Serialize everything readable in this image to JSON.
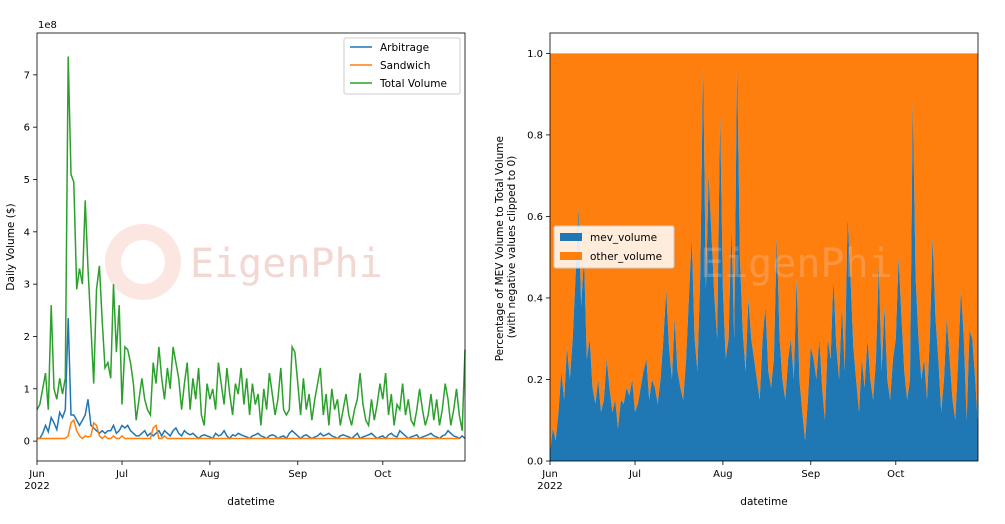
{
  "watermark": "EigenPhi",
  "chart_data": [
    {
      "type": "line",
      "xlabel": "datetime",
      "ylabel": "Daily Volume ($)",
      "y_offset_label": "1e8",
      "x_range": [
        0,
        151
      ],
      "ylim": [
        -0.38,
        7.8
      ],
      "yticks": [
        0,
        1,
        2,
        3,
        4,
        5,
        6,
        7
      ],
      "xtick_positions": [
        0,
        30,
        61,
        92,
        122
      ],
      "xtick_labels": [
        "Jun",
        "Jul",
        "Aug",
        "Sep",
        "Oct"
      ],
      "year_label": "2022",
      "legend_position": "upper right",
      "series": [
        {
          "name": "Arbitrage",
          "color": "#1f77b4",
          "values": [
            0.05,
            0.05,
            0.15,
            0.3,
            0.18,
            0.45,
            0.35,
            0.22,
            0.55,
            0.45,
            0.6,
            2.35,
            0.5,
            0.5,
            0.4,
            0.3,
            0.4,
            0.5,
            0.8,
            0.3,
            0.25,
            0.2,
            0.15,
            0.2,
            0.15,
            0.2,
            0.2,
            0.3,
            0.15,
            0.2,
            0.3,
            0.25,
            0.3,
            0.2,
            0.15,
            0.1,
            0.1,
            0.15,
            0.2,
            0.1,
            0.15,
            0.1,
            0.15,
            0.2,
            0.1,
            0.2,
            0.15,
            0.1,
            0.2,
            0.25,
            0.15,
            0.1,
            0.2,
            0.15,
            0.12,
            0.15,
            0.1,
            0.05,
            0.1,
            0.12,
            0.1,
            0.08,
            0.05,
            0.15,
            0.1,
            0.12,
            0.2,
            0.1,
            0.05,
            0.12,
            0.1,
            0.15,
            0.12,
            0.1,
            0.08,
            0.05,
            0.1,
            0.12,
            0.15,
            0.1,
            0.08,
            0.05,
            0.1,
            0.12,
            0.1,
            0.05,
            0.08,
            0.1,
            0.05,
            0.15,
            0.2,
            0.15,
            0.1,
            0.05,
            0.1,
            0.12,
            0.08,
            0.05,
            0.08,
            0.1,
            0.15,
            0.1,
            0.12,
            0.15,
            0.1,
            0.08,
            0.05,
            0.1,
            0.12,
            0.1,
            0.08,
            0.05,
            0.1,
            0.15,
            0.05,
            0.08,
            0.1,
            0.12,
            0.15,
            0.1,
            0.05,
            0.08,
            0.1,
            0.05,
            0.12,
            0.15,
            0.1,
            0.08,
            0.2,
            0.15,
            0.1,
            0.05,
            0.08,
            0.1,
            0.12,
            0.05,
            0.08,
            0.1,
            0.12,
            0.15,
            0.1,
            0.08,
            0.05,
            0.1,
            0.12,
            0.2,
            0.15,
            0.1,
            0.08,
            0.05,
            0.1,
            0.05
          ]
        },
        {
          "name": "Sandwich",
          "color": "#ff7f0e",
          "values": [
            0.05,
            0.05,
            0.05,
            0.05,
            0.05,
            0.05,
            0.05,
            0.05,
            0.05,
            0.05,
            0.05,
            0.1,
            0.35,
            0.4,
            0.2,
            0.1,
            0.05,
            0.1,
            0.08,
            0.1,
            0.35,
            0.3,
            0.1,
            0.05,
            0.1,
            0.05,
            0.05,
            0.1,
            0.05,
            0.05,
            0.1,
            0.05,
            0.05,
            0.05,
            0.05,
            0.05,
            0.05,
            0.05,
            0.05,
            0.05,
            0.05,
            0.25,
            0.3,
            0.05,
            0.05,
            0.1,
            0.05,
            0.05,
            0.05,
            0.05,
            0.05,
            0.05,
            0.05,
            0.05,
            0.05,
            0.05,
            0.05,
            0.05,
            0.05,
            0.05,
            0.05,
            0.05,
            0.05,
            0.05,
            0.05,
            0.05,
            0.05,
            0.05,
            0.05,
            0.05,
            0.05,
            0.05,
            0.05,
            0.05,
            0.05,
            0.05,
            0.05,
            0.05,
            0.05,
            0.05,
            0.05,
            0.05,
            0.05,
            0.05,
            0.05,
            0.05,
            0.05,
            0.05,
            0.05,
            0.05,
            0.05,
            0.05,
            0.05,
            0.05,
            0.05,
            0.05,
            0.05,
            0.05,
            0.05,
            0.05,
            0.05,
            0.05,
            0.05,
            0.05,
            0.05,
            0.05,
            0.05,
            0.05,
            0.05,
            0.05,
            0.05,
            0.05,
            0.05,
            0.05,
            0.05,
            0.05,
            0.05,
            0.05,
            0.05,
            0.05,
            0.05,
            0.05,
            0.05,
            0.05,
            0.05,
            0.05,
            0.05,
            0.05,
            0.05,
            0.05,
            0.05,
            0.05,
            0.05,
            0.05,
            0.05,
            0.05,
            0.05,
            0.05,
            0.05,
            0.05,
            0.05,
            0.05,
            0.05,
            0.05,
            0.05,
            0.05,
            0.05,
            0.05,
            0.05,
            0.05
          ]
        },
        {
          "name": "Total Volume",
          "color": "#2ca02c",
          "values": [
            0.6,
            0.7,
            1.0,
            1.3,
            0.6,
            2.6,
            1.0,
            0.8,
            1.2,
            0.9,
            1.2,
            7.35,
            5.1,
            4.95,
            2.9,
            3.3,
            3.0,
            4.6,
            3.3,
            2.2,
            1.1,
            2.9,
            3.35,
            2.3,
            1.4,
            1.5,
            1.2,
            3.0,
            1.7,
            2.6,
            0.7,
            1.8,
            1.75,
            1.5,
            1.1,
            0.4,
            0.8,
            1.2,
            0.8,
            0.6,
            0.5,
            1.5,
            1.1,
            1.8,
            1.2,
            0.8,
            1.4,
            1.0,
            1.8,
            1.5,
            1.2,
            0.6,
            1.1,
            1.5,
            0.6,
            1.2,
            0.8,
            1.4,
            0.5,
            0.3,
            1.1,
            0.8,
            1.0,
            0.6,
            1.5,
            1.1,
            0.7,
            1.4,
            0.9,
            0.5,
            1.1,
            0.9,
            1.4,
            0.7,
            1.2,
            0.5,
            1.1,
            0.7,
            0.9,
            0.3,
            1.0,
            0.6,
            1.3,
            0.9,
            0.5,
            0.8,
            1.4,
            0.6,
            0.5,
            0.6,
            1.8,
            1.7,
            1.1,
            0.5,
            1.2,
            0.6,
            0.9,
            0.4,
            0.8,
            1.1,
            1.4,
            0.5,
            0.9,
            0.3,
            1.0,
            0.6,
            0.8,
            0.3,
            0.6,
            0.9,
            0.5,
            0.3,
            0.6,
            0.8,
            1.3,
            0.7,
            0.4,
            0.3,
            0.8,
            0.4,
            0.7,
            1.1,
            0.8,
            1.3,
            0.5,
            0.9,
            0.3,
            0.7,
            0.6,
            1.1,
            0.5,
            0.8,
            0.4,
            0.3,
            0.6,
            1.0,
            0.6,
            0.3,
            0.5,
            0.9,
            0.4,
            0.8,
            0.3,
            0.6,
            1.1,
            0.8,
            0.3,
            0.6,
            1.0,
            0.5,
            0.2,
            1.75
          ]
        }
      ]
    },
    {
      "type": "area",
      "stacked": true,
      "xlabel": "datetime",
      "ylabel": "Percentage of MEV Volume to Total Volume\n(with negative values clipped to 0)",
      "x_range": [
        0,
        151
      ],
      "ylim": [
        0,
        1.05
      ],
      "yticks": [
        "0.0",
        "0.2",
        "0.4",
        "0.6",
        "0.8",
        "1.0"
      ],
      "xtick_positions": [
        0,
        30,
        61,
        92,
        122
      ],
      "xtick_labels": [
        "Jun",
        "Jul",
        "Aug",
        "Sep",
        "Oct"
      ],
      "year_label": "2022",
      "legend_position": "center left",
      "series": [
        {
          "name": "mev_volume",
          "color": "#1f77b4",
          "values": [
            0.02,
            0.08,
            0.05,
            0.12,
            0.22,
            0.15,
            0.28,
            0.2,
            0.3,
            0.45,
            0.62,
            0.38,
            0.5,
            0.25,
            0.3,
            0.18,
            0.14,
            0.2,
            0.12,
            0.15,
            0.25,
            0.18,
            0.12,
            0.15,
            0.08,
            0.15,
            0.14,
            0.18,
            0.16,
            0.2,
            0.12,
            0.14,
            0.18,
            0.22,
            0.25,
            0.15,
            0.2,
            0.18,
            0.14,
            0.2,
            0.3,
            0.42,
            0.28,
            0.2,
            0.35,
            0.22,
            0.18,
            0.15,
            0.25,
            0.4,
            0.55,
            0.3,
            0.22,
            0.45,
            0.98,
            0.42,
            0.7,
            0.55,
            0.4,
            0.3,
            0.85,
            0.42,
            0.25,
            0.3,
            0.58,
            0.3,
            0.98,
            0.5,
            0.32,
            0.22,
            0.4,
            0.3,
            0.25,
            0.2,
            0.15,
            0.3,
            0.38,
            0.22,
            0.18,
            0.25,
            0.55,
            0.3,
            0.2,
            0.15,
            0.25,
            0.3,
            0.2,
            0.45,
            0.2,
            0.12,
            0.05,
            0.15,
            0.28,
            0.25,
            0.2,
            0.3,
            0.18,
            0.1,
            0.3,
            0.25,
            0.45,
            0.28,
            0.2,
            0.38,
            0.22,
            0.6,
            0.45,
            0.28,
            0.2,
            0.12,
            0.25,
            0.18,
            0.3,
            0.2,
            0.15,
            0.25,
            0.48,
            0.22,
            0.38,
            0.2,
            0.15,
            0.25,
            0.3,
            0.5,
            0.35,
            0.22,
            0.15,
            0.2,
            0.88,
            0.45,
            0.3,
            0.2,
            0.25,
            0.15,
            0.3,
            0.55,
            0.35,
            0.25,
            0.12,
            0.2,
            0.35,
            0.25,
            0.15,
            0.1,
            0.25,
            0.42,
            0.3,
            0.1,
            0.32,
            0.3,
            0.2,
            0.08
          ]
        },
        {
          "name": "other_volume",
          "color": "#ff7f0e",
          "values": "1 - mev_volume (stacked to 1.0)"
        }
      ]
    }
  ]
}
